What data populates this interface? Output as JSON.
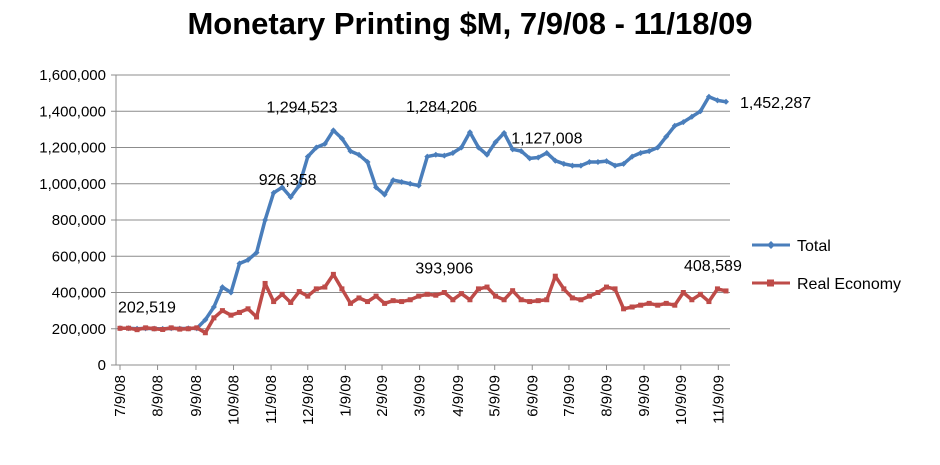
{
  "chart_data": {
    "type": "line",
    "title": "Monetary Printing $M, 7/9/08 - 11/18/09",
    "xlabel": "",
    "ylabel": "",
    "ylim": [
      0,
      1600000
    ],
    "yticks": [
      0,
      200000,
      400000,
      600000,
      800000,
      1000000,
      1200000,
      1400000,
      1600000
    ],
    "ytick_labels": [
      "0",
      "200,000",
      "400,000",
      "600,000",
      "800,000",
      "1,000,000",
      "1,200,000",
      "1,400,000",
      "1,600,000"
    ],
    "xtick_labels": [
      "7/9/08",
      "8/9/08",
      "9/9/08",
      "10/9/08",
      "11/9/08",
      "12/9/08",
      "1/9/09",
      "2/9/09",
      "3/9/09",
      "4/9/09",
      "5/9/09",
      "6/9/09",
      "7/9/09",
      "8/9/09",
      "9/9/09",
      "10/9/09",
      "11/9/09"
    ],
    "xtick_index": [
      0,
      4.4,
      8.9,
      13.3,
      17.7,
      22.0,
      26.4,
      30.7,
      35.1,
      39.6,
      43.9,
      48.3,
      52.6,
      57.0,
      61.4,
      65.7,
      70.1
    ],
    "legend_position": "right",
    "grid": true,
    "series": [
      {
        "name": "Total",
        "color": "#4a7ebb",
        "marker": "diamond",
        "values": [
          202519,
          203000,
          200000,
          202000,
          201000,
          199000,
          203000,
          201000,
          202000,
          202000,
          250000,
          320000,
          430000,
          400000,
          560000,
          580000,
          620000,
          800000,
          950000,
          980000,
          926358,
          990000,
          1150000,
          1200000,
          1220000,
          1294523,
          1250000,
          1180000,
          1160000,
          1120000,
          980000,
          940000,
          1020000,
          1010000,
          1000000,
          990000,
          1150000,
          1160000,
          1155000,
          1170000,
          1200000,
          1284206,
          1200000,
          1160000,
          1230000,
          1280000,
          1190000,
          1180000,
          1140000,
          1145000,
          1170000,
          1127008,
          1110000,
          1100000,
          1100000,
          1120000,
          1120000,
          1125000,
          1100000,
          1110000,
          1150000,
          1170000,
          1180000,
          1200000,
          1260000,
          1320000,
          1340000,
          1370000,
          1400000,
          1480000,
          1460000,
          1452287
        ]
      },
      {
        "name": "Real Economy",
        "color": "#be4b48",
        "marker": "square",
        "values": [
          202519,
          203000,
          195000,
          205000,
          200000,
          196000,
          205000,
          198000,
          200000,
          205000,
          178000,
          260000,
          300000,
          275000,
          290000,
          310000,
          265000,
          450000,
          350000,
          390000,
          345000,
          405000,
          380000,
          420000,
          430000,
          500000,
          420000,
          340000,
          370000,
          350000,
          380000,
          340000,
          355000,
          350000,
          360000,
          380000,
          390000,
          385000,
          400000,
          360000,
          393906,
          360000,
          420000,
          430000,
          380000,
          360000,
          410000,
          360000,
          350000,
          355000,
          360000,
          490000,
          420000,
          370000,
          360000,
          380000,
          400000,
          430000,
          420000,
          310000,
          320000,
          330000,
          340000,
          330000,
          340000,
          330000,
          400000,
          360000,
          390000,
          350000,
          420000,
          408589
        ]
      }
    ],
    "annotations": [
      {
        "text": "202,519",
        "series": 0,
        "index": 0
      },
      {
        "text": "926,358",
        "series": 0,
        "index": 20
      },
      {
        "text": "1,294,523",
        "series": 0,
        "index": 25
      },
      {
        "text": "1,284,206",
        "series": 0,
        "index": 41
      },
      {
        "text": "1,127,008",
        "series": 0,
        "index": 51
      },
      {
        "text": "1,452,287",
        "series": 0,
        "index": 71
      },
      {
        "text": "393,906",
        "series": 1,
        "index": 40
      },
      {
        "text": "408,589",
        "series": 1,
        "index": 71
      }
    ]
  }
}
